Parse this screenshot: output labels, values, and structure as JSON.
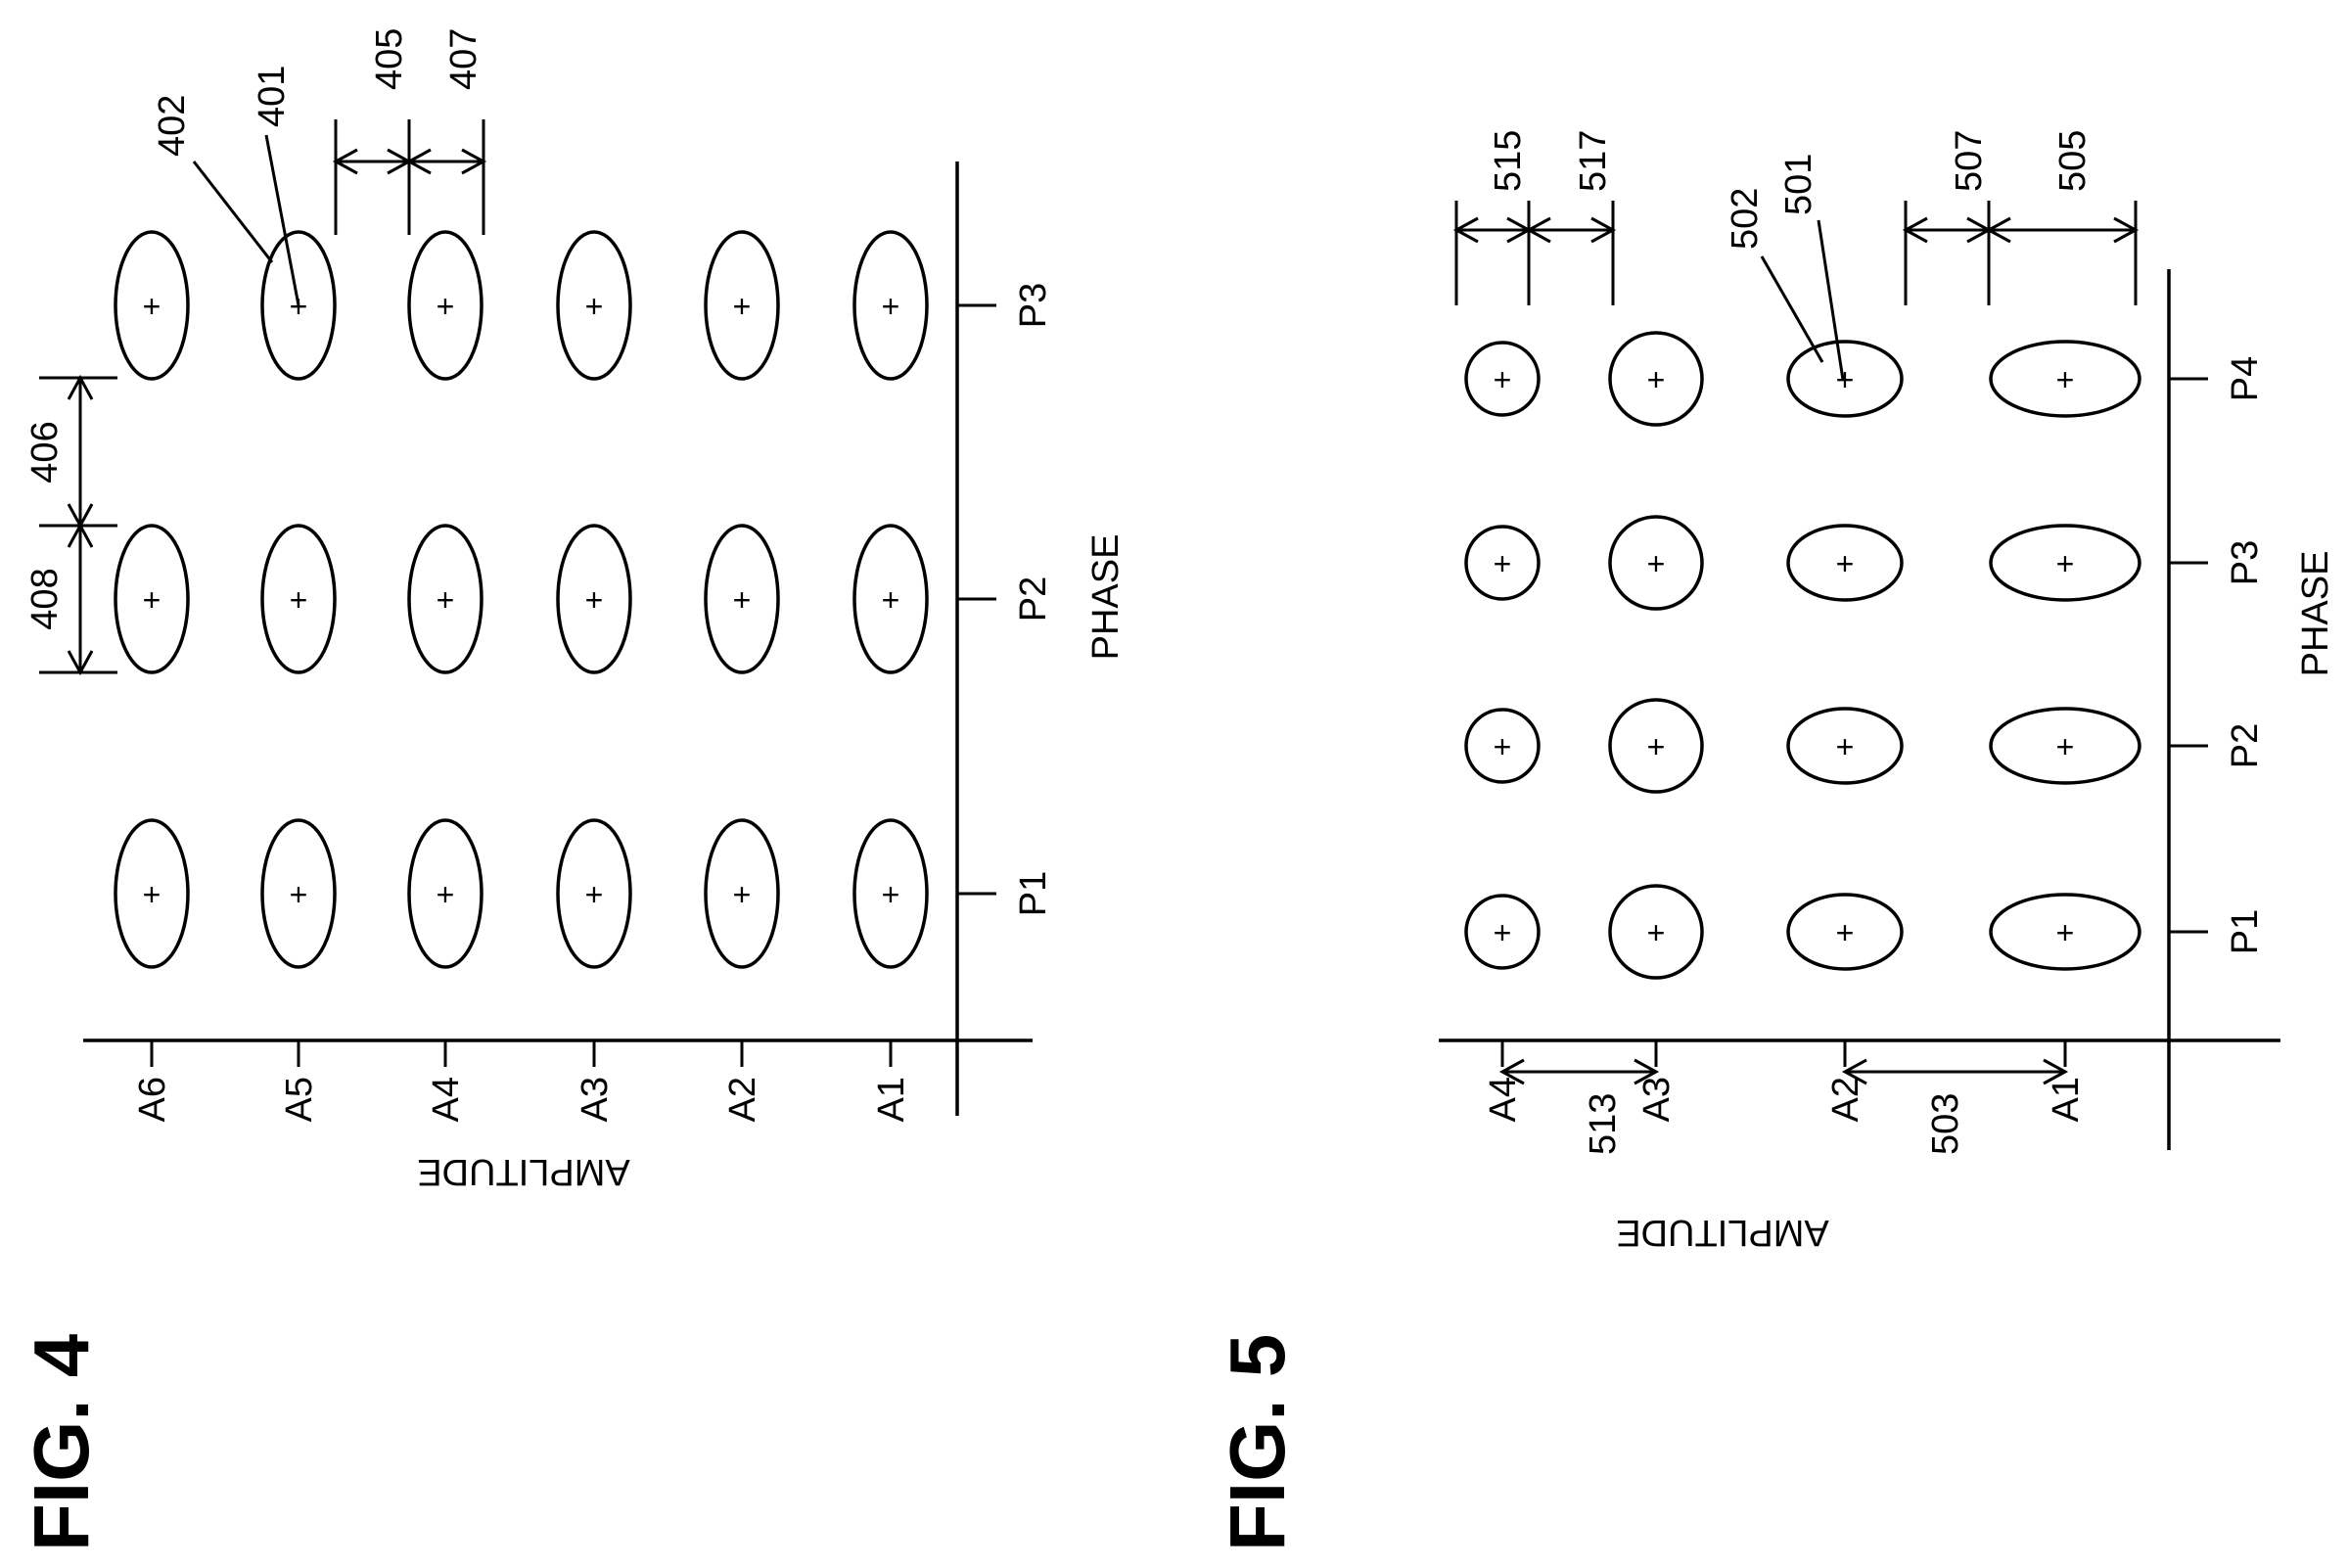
{
  "figures": [
    {
      "id": "fig4",
      "title": "FIG. 4",
      "amplitude_axis_title": "AMPLITUDE",
      "phase_axis_title": "PHASE",
      "amplitude_levels": [
        "A6",
        "A5",
        "A4",
        "A3",
        "A2",
        "A1"
      ],
      "phase_levels": [
        "P1",
        "P2",
        "P3"
      ],
      "refs": {
        "center": "401",
        "ellipse": "402",
        "amp_spacing": "405",
        "amp_extent": "407",
        "phase_spacing": "406",
        "phase_extent": "408"
      }
    },
    {
      "id": "fig5",
      "title": "FIG. 5",
      "amplitude_axis_title": "AMPLITUDE",
      "phase_axis_title": "PHASE",
      "amplitude_levels": [
        "A4",
        "A3",
        "A2",
        "A1"
      ],
      "phase_levels": [
        "P1",
        "P2",
        "P3",
        "P4"
      ],
      "refs": {
        "center": "501",
        "ellipse": "502",
        "amp_spacing_low": "503",
        "amp_extent_low": "505",
        "amp_gap_low": "507",
        "amp_spacing_high": "513",
        "amp_extent_high": "515",
        "amp_gap_high": "517"
      }
    }
  ],
  "symbols": {
    "center_mark": "+"
  }
}
